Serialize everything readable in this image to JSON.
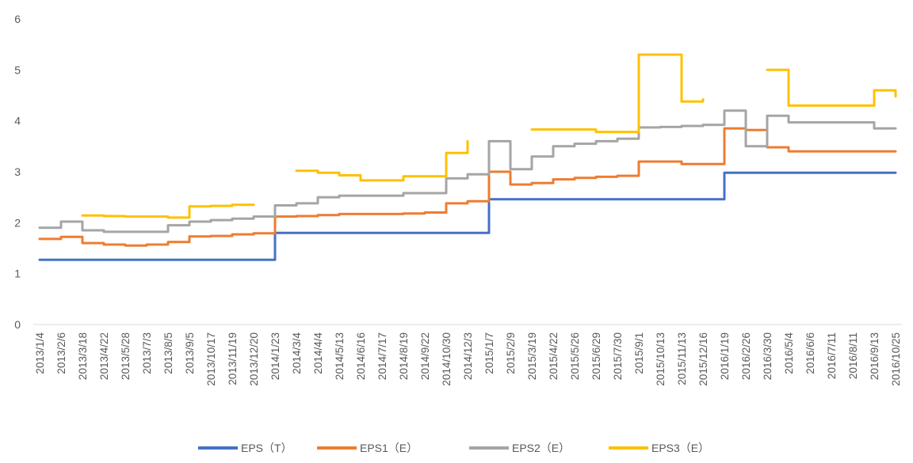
{
  "chart_data": {
    "type": "line",
    "title": "",
    "xlabel": "",
    "ylabel": "",
    "ylim": [
      0,
      6
    ],
    "yticks": [
      "0",
      "1",
      "2",
      "3",
      "4",
      "5",
      "6"
    ],
    "grid": false,
    "legend_position": "bottom",
    "x_tick_labels": [
      "2013/1/4",
      "2013/2/6",
      "2013/3/18",
      "2013/4/22",
      "2013/5/28",
      "2013/7/3",
      "2013/8/5",
      "2013/9/5",
      "2013/10/17",
      "2013/11/19",
      "2013/12/20",
      "2014/1/23",
      "2014/3/4",
      "2014/4/4",
      "2014/5/13",
      "2014/6/16",
      "2014/7/17",
      "2014/8/19",
      "2014/9/22",
      "2014/10/30",
      "2014/12/3",
      "2015/1/7",
      "2015/2/9",
      "2015/3/19",
      "2015/4/22",
      "2015/5/26",
      "2015/6/29",
      "2015/7/30",
      "2015/9/1",
      "2015/10/13",
      "2015/11/13",
      "2015/12/16",
      "2016/1/19",
      "2016/2/26",
      "2016/3/30",
      "2016/5/4",
      "2016/6/6",
      "2016/7/11",
      "2016/8/11",
      "2016/9/13",
      "2016/10/25"
    ],
    "series": [
      {
        "name": "EPS（T）",
        "color": "#4472C4",
        "values": [
          1.27,
          1.27,
          1.27,
          1.27,
          1.27,
          1.27,
          1.27,
          1.27,
          1.27,
          1.27,
          1.27,
          1.8,
          1.8,
          1.8,
          1.8,
          1.8,
          1.8,
          1.8,
          1.8,
          1.8,
          1.8,
          2.46,
          2.46,
          2.46,
          2.46,
          2.46,
          2.46,
          2.46,
          2.46,
          2.46,
          2.46,
          2.46,
          2.98,
          2.98,
          2.98,
          2.98,
          2.98,
          2.98,
          2.98,
          2.98,
          2.98
        ]
      },
      {
        "name": "EPS1（E）",
        "color": "#ED7D31",
        "values": [
          1.68,
          1.72,
          1.6,
          1.57,
          1.55,
          1.57,
          1.62,
          1.73,
          1.74,
          1.77,
          1.79,
          2.12,
          2.13,
          2.15,
          2.17,
          2.17,
          2.17,
          2.18,
          2.2,
          2.38,
          2.42,
          3.0,
          2.75,
          2.78,
          2.85,
          2.88,
          2.9,
          2.92,
          3.2,
          3.2,
          3.15,
          3.15,
          3.85,
          3.82,
          3.48,
          3.4,
          3.4,
          3.4,
          3.4,
          3.4,
          3.4
        ]
      },
      {
        "name": "EPS2（E）",
        "color": "#A5A5A5",
        "values": [
          1.9,
          2.02,
          1.85,
          1.82,
          1.82,
          1.82,
          1.95,
          2.02,
          2.05,
          2.08,
          2.12,
          2.34,
          2.38,
          2.5,
          2.53,
          2.53,
          2.53,
          2.58,
          2.58,
          2.87,
          2.95,
          3.6,
          3.05,
          3.3,
          3.5,
          3.55,
          3.6,
          3.65,
          3.87,
          3.88,
          3.9,
          3.92,
          4.2,
          3.5,
          4.1,
          3.97,
          3.97,
          3.97,
          3.97,
          3.85,
          3.85
        ]
      },
      {
        "name": "EPS3（E）",
        "color": "#FFC000",
        "values": [
          null,
          null,
          2.14,
          2.13,
          2.12,
          2.12,
          2.1,
          2.32,
          2.33,
          2.35,
          2.35,
          null,
          3.02,
          2.98,
          2.93,
          2.83,
          2.83,
          2.91,
          2.91,
          3.37,
          3.6,
          null,
          null,
          3.83,
          3.83,
          3.83,
          3.78,
          3.78,
          5.3,
          5.3,
          4.38,
          4.42,
          null,
          null,
          5.0,
          4.3,
          4.3,
          4.3,
          4.3,
          4.6,
          4.48
        ]
      }
    ]
  }
}
